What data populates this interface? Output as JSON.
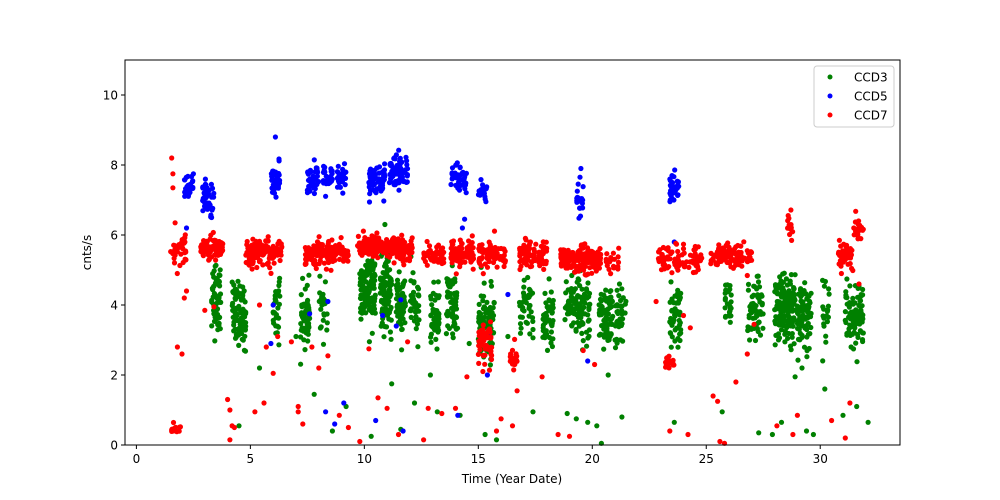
{
  "chart_data": {
    "type": "scatter",
    "title": "",
    "xlabel": "Time (Year Date)",
    "ylabel": "cnts/s",
    "xlim": [
      -0.5,
      33.5
    ],
    "ylim": [
      0,
      11
    ],
    "xticks": [
      0,
      5,
      10,
      15,
      20,
      25,
      30
    ],
    "yticks": [
      0,
      2,
      4,
      6,
      8,
      10
    ],
    "grid": false,
    "legend_position": "top-right",
    "series": [
      {
        "name": "CCD3",
        "color": "#008000",
        "clusters": [
          {
            "x": [
              3.3,
              3.7
            ],
            "y": [
              4.3,
              0.55
            ],
            "n": 55
          },
          {
            "x": [
              4.2,
              4.8
            ],
            "y": [
              3.7,
              0.45
            ],
            "n": 90
          },
          {
            "x": [
              6.0,
              6.3
            ],
            "y": [
              3.9,
              0.45
            ],
            "n": 30
          },
          {
            "x": [
              7.2,
              7.6
            ],
            "y": [
              3.7,
              0.4
            ],
            "n": 60
          },
          {
            "x": [
              8.0,
              8.4
            ],
            "y": [
              3.9,
              0.4
            ],
            "n": 25
          },
          {
            "x": [
              9.8,
              10.5
            ],
            "y": [
              4.4,
              0.5
            ],
            "n": 120
          },
          {
            "x": [
              10.7,
              11.2
            ],
            "y": [
              4.3,
              0.5
            ],
            "n": 90
          },
          {
            "x": [
              11.4,
              11.8
            ],
            "y": [
              4.0,
              0.45
            ],
            "n": 60
          },
          {
            "x": [
              12.0,
              12.4
            ],
            "y": [
              4.0,
              0.45
            ],
            "n": 40
          },
          {
            "x": [
              12.9,
              13.3
            ],
            "y": [
              3.7,
              0.4
            ],
            "n": 50
          },
          {
            "x": [
              13.6,
              14.1
            ],
            "y": [
              4.0,
              0.45
            ],
            "n": 60
          },
          {
            "x": [
              15.0,
              15.7
            ],
            "y": [
              3.5,
              0.5
            ],
            "n": 80
          },
          {
            "x": [
              16.8,
              17.4
            ],
            "y": [
              3.9,
              0.4
            ],
            "n": 40
          },
          {
            "x": [
              17.8,
              18.3
            ],
            "y": [
              3.6,
              0.45
            ],
            "n": 50
          },
          {
            "x": [
              18.8,
              19.9
            ],
            "y": [
              4.0,
              0.45
            ],
            "n": 110
          },
          {
            "x": [
              20.3,
              20.9
            ],
            "y": [
              3.6,
              0.45
            ],
            "n": 80
          },
          {
            "x": [
              21.0,
              21.5
            ],
            "y": [
              3.6,
              0.45
            ],
            "n": 40
          },
          {
            "x": [
              23.4,
              23.9
            ],
            "y": [
              3.7,
              0.45
            ],
            "n": 50
          },
          {
            "x": [
              25.8,
              26.1
            ],
            "y": [
              4.0,
              0.4
            ],
            "n": 25
          },
          {
            "x": [
              26.8,
              27.5
            ],
            "y": [
              3.8,
              0.45
            ],
            "n": 60
          },
          {
            "x": [
              28.0,
              28.9
            ],
            "y": [
              3.9,
              0.45
            ],
            "n": 150
          },
          {
            "x": [
              29.0,
              29.6
            ],
            "y": [
              3.7,
              0.45
            ],
            "n": 80
          },
          {
            "x": [
              30.1,
              30.4
            ],
            "y": [
              3.9,
              0.45
            ],
            "n": 20
          },
          {
            "x": [
              31.1,
              31.9
            ],
            "y": [
              3.7,
              0.45
            ],
            "n": 90
          }
        ],
        "points": [
          [
            4.5,
            0.55
          ],
          [
            7.0,
            3.1
          ],
          [
            7.8,
            1.45
          ],
          [
            8.6,
            0.4
          ],
          [
            9.2,
            1.1
          ],
          [
            10.3,
            0.25
          ],
          [
            11.2,
            1.75
          ],
          [
            11.6,
            0.45
          ],
          [
            12.2,
            1.2
          ],
          [
            12.9,
            2.0
          ],
          [
            13.2,
            0.95
          ],
          [
            14.2,
            0.85
          ],
          [
            15.3,
            0.3
          ],
          [
            15.8,
            0.15
          ],
          [
            17.4,
            0.95
          ],
          [
            17.4,
            3.3
          ],
          [
            18.9,
            0.9
          ],
          [
            19.3,
            0.75
          ],
          [
            19.8,
            0.65
          ],
          [
            20.2,
            0.55
          ],
          [
            20.4,
            0.05
          ],
          [
            20.7,
            2.0
          ],
          [
            21.3,
            0.8
          ],
          [
            23.6,
            0.65
          ],
          [
            25.7,
            0.95
          ],
          [
            27.3,
            0.35
          ],
          [
            27.9,
            0.3
          ],
          [
            28.3,
            0.65
          ],
          [
            28.9,
            1.95
          ],
          [
            29.4,
            0.4
          ],
          [
            29.7,
            0.3
          ],
          [
            30.2,
            1.6
          ],
          [
            31.0,
            0.85
          ],
          [
            31.6,
            1.1
          ],
          [
            32.1,
            0.65
          ],
          [
            26.9,
            3.0
          ],
          [
            29.2,
            2.2
          ],
          [
            21.0,
            3.0
          ],
          [
            14.6,
            2.9
          ],
          [
            16.3,
            3.1
          ],
          [
            5.4,
            2.2
          ],
          [
            10.9,
            6.3
          ]
        ]
      },
      {
        "name": "CCD5",
        "color": "#0000ff",
        "clusters": [
          {
            "x": [
              2.1,
              2.5
            ],
            "y": [
              7.35,
              0.2
            ],
            "n": 25
          },
          {
            "x": [
              2.9,
              3.4
            ],
            "y": [
              7.1,
              0.25
            ],
            "n": 40
          },
          {
            "x": [
              5.9,
              6.3
            ],
            "y": [
              7.6,
              0.22
            ],
            "n": 30
          },
          {
            "x": [
              7.5,
              8.0
            ],
            "y": [
              7.55,
              0.22
            ],
            "n": 40
          },
          {
            "x": [
              8.2,
              8.6
            ],
            "y": [
              7.6,
              0.2
            ],
            "n": 30
          },
          {
            "x": [
              8.8,
              9.2
            ],
            "y": [
              7.6,
              0.2
            ],
            "n": 30
          },
          {
            "x": [
              10.2,
              10.9
            ],
            "y": [
              7.55,
              0.25
            ],
            "n": 70
          },
          {
            "x": [
              11.1,
              11.9
            ],
            "y": [
              7.8,
              0.25
            ],
            "n": 70
          },
          {
            "x": [
              13.8,
              14.5
            ],
            "y": [
              7.6,
              0.22
            ],
            "n": 40
          },
          {
            "x": [
              15.0,
              15.4
            ],
            "y": [
              7.25,
              0.2
            ],
            "n": 20
          },
          {
            "x": [
              19.3,
              19.6
            ],
            "y": [
              7.0,
              0.3
            ],
            "n": 20
          },
          {
            "x": [
              23.4,
              23.8
            ],
            "y": [
              7.25,
              0.25
            ],
            "n": 30
          }
        ],
        "points": [
          [
            6.1,
            8.8
          ],
          [
            19.5,
            7.9
          ],
          [
            3.3,
            6.5
          ],
          [
            2.2,
            6.2
          ],
          [
            6.0,
            4.0
          ],
          [
            8.4,
            4.1
          ],
          [
            7.6,
            3.75
          ],
          [
            11.6,
            4.15
          ],
          [
            10.8,
            3.7
          ],
          [
            11.4,
            3.4
          ],
          [
            16.3,
            4.3
          ],
          [
            15.5,
            3.1
          ],
          [
            8.3,
            0.95
          ],
          [
            8.7,
            0.6
          ],
          [
            9.1,
            1.2
          ],
          [
            10.5,
            0.7
          ],
          [
            11.7,
            0.4
          ],
          [
            14.1,
            0.85
          ],
          [
            15.4,
            2.0
          ],
          [
            19.8,
            2.4
          ],
          [
            23.6,
            5.8
          ],
          [
            14.3,
            6.2
          ],
          [
            14.4,
            6.45
          ],
          [
            5.9,
            2.9
          ]
        ]
      },
      {
        "name": "CCD7",
        "color": "#ff0000",
        "clusters": [
          {
            "x": [
              1.5,
              2.2
            ],
            "y": [
              5.5,
              0.2
            ],
            "n": 40
          },
          {
            "x": [
              2.8,
              3.8
            ],
            "y": [
              5.6,
              0.15
            ],
            "n": 90
          },
          {
            "x": [
              4.8,
              6.4
            ],
            "y": [
              5.5,
              0.18
            ],
            "n": 140
          },
          {
            "x": [
              7.4,
              8.4
            ],
            "y": [
              5.5,
              0.18
            ],
            "n": 80
          },
          {
            "x": [
              8.3,
              9.3
            ],
            "y": [
              5.5,
              0.15
            ],
            "n": 70
          },
          {
            "x": [
              9.7,
              11.0
            ],
            "y": [
              5.7,
              0.15
            ],
            "n": 140
          },
          {
            "x": [
              11.0,
              12.1
            ],
            "y": [
              5.6,
              0.15
            ],
            "n": 110
          },
          {
            "x": [
              12.6,
              13.5
            ],
            "y": [
              5.45,
              0.15
            ],
            "n": 50
          },
          {
            "x": [
              13.8,
              14.8
            ],
            "y": [
              5.45,
              0.2
            ],
            "n": 80
          },
          {
            "x": [
              15.0,
              16.2
            ],
            "y": [
              5.4,
              0.2
            ],
            "n": 70
          },
          {
            "x": [
              16.8,
              18.0
            ],
            "y": [
              5.45,
              0.2
            ],
            "n": 90
          },
          {
            "x": [
              18.6,
              20.4
            ],
            "y": [
              5.3,
              0.18
            ],
            "n": 160
          },
          {
            "x": [
              20.6,
              21.2
            ],
            "y": [
              5.2,
              0.2
            ],
            "n": 20
          },
          {
            "x": [
              22.9,
              24.8
            ],
            "y": [
              5.3,
              0.2
            ],
            "n": 90
          },
          {
            "x": [
              25.2,
              27.0
            ],
            "y": [
              5.4,
              0.18
            ],
            "n": 110
          },
          {
            "x": [
              30.8,
              31.5
            ],
            "y": [
              5.4,
              0.2
            ],
            "n": 50
          },
          {
            "x": [
              15.0,
              15.6
            ],
            "y": [
              2.9,
              0.25
            ],
            "n": 60
          },
          {
            "x": [
              16.4,
              16.7
            ],
            "y": [
              2.45,
              0.15
            ],
            "n": 20
          },
          {
            "x": [
              23.2,
              23.6
            ],
            "y": [
              2.35,
              0.1
            ],
            "n": 20
          },
          {
            "x": [
              31.4,
              31.9
            ],
            "y": [
              6.2,
              0.2
            ],
            "n": 20
          },
          {
            "x": [
              28.5,
              28.8
            ],
            "y": [
              6.2,
              0.2
            ],
            "n": 15
          },
          {
            "x": [
              1.5,
              2.0
            ],
            "y": [
              0.45,
              0.08
            ],
            "n": 15
          }
        ],
        "points": [
          [
            1.55,
            8.2
          ],
          [
            1.6,
            7.75
          ],
          [
            1.6,
            7.35
          ],
          [
            1.7,
            6.35
          ],
          [
            1.8,
            2.8
          ],
          [
            2.0,
            2.6
          ],
          [
            2.1,
            4.2
          ],
          [
            2.2,
            4.4
          ],
          [
            3.0,
            3.85
          ],
          [
            3.4,
            3.95
          ],
          [
            4.1,
            1.0
          ],
          [
            4.1,
            0.15
          ],
          [
            4.0,
            1.3
          ],
          [
            4.2,
            0.55
          ],
          [
            4.3,
            0.5
          ],
          [
            5.2,
            0.95
          ],
          [
            5.4,
            4.0
          ],
          [
            5.6,
            1.2
          ],
          [
            5.7,
            2.8
          ],
          [
            6.0,
            2.05
          ],
          [
            6.2,
            3.1
          ],
          [
            6.8,
            2.95
          ],
          [
            7.1,
            0.95
          ],
          [
            7.3,
            0.6
          ],
          [
            7.1,
            1.1
          ],
          [
            7.7,
            2.8
          ],
          [
            8.0,
            2.2
          ],
          [
            8.4,
            2.55
          ],
          [
            8.9,
            0.85
          ],
          [
            9.3,
            0.5
          ],
          [
            9.8,
            0.1
          ],
          [
            10.2,
            2.75
          ],
          [
            10.6,
            1.35
          ],
          [
            11.0,
            1.05
          ],
          [
            11.9,
            2.95
          ],
          [
            11.5,
            0.3
          ],
          [
            12.6,
            0.15
          ],
          [
            12.8,
            1.05
          ],
          [
            13.4,
            0.9
          ],
          [
            14.0,
            1.05
          ],
          [
            14.5,
            1.95
          ],
          [
            15.2,
            2.1
          ],
          [
            15.8,
            0.4
          ],
          [
            16.0,
            0.75
          ],
          [
            16.5,
            0.55
          ],
          [
            16.7,
            1.55
          ],
          [
            17.8,
            1.95
          ],
          [
            18.5,
            0.3
          ],
          [
            19.0,
            0.25
          ],
          [
            19.6,
            2.7
          ],
          [
            20.1,
            2.3
          ],
          [
            22.8,
            4.1
          ],
          [
            23.4,
            0.4
          ],
          [
            24.2,
            0.3
          ],
          [
            24.3,
            3.35
          ],
          [
            25.3,
            1.4
          ],
          [
            25.6,
            0.1
          ],
          [
            25.8,
            0.05
          ],
          [
            25.5,
            1.25
          ],
          [
            26.3,
            1.8
          ],
          [
            26.8,
            2.6
          ],
          [
            27.1,
            3.45
          ],
          [
            28.1,
            0.55
          ],
          [
            28.8,
            0.3
          ],
          [
            29.0,
            0.85
          ],
          [
            30.5,
            0.7
          ],
          [
            31.1,
            0.2
          ],
          [
            31.3,
            1.2
          ],
          [
            31.7,
            4.6
          ],
          [
            24.0,
            3.7
          ]
        ]
      }
    ]
  }
}
